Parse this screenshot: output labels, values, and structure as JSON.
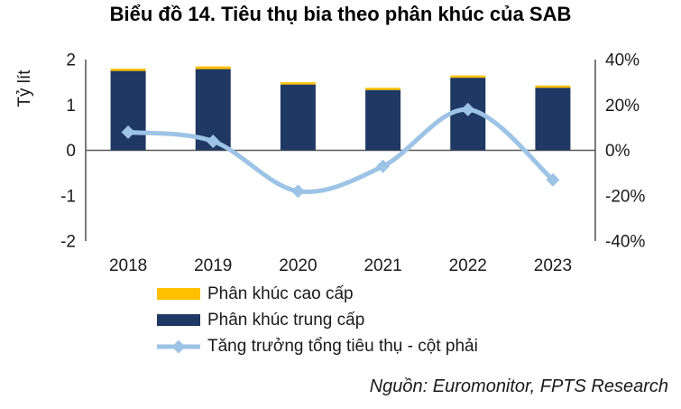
{
  "chart_data": {
    "type": "combo-bar-line",
    "title": "Biểu đồ 14. Tiêu thụ bia theo phân khúc của SAB",
    "categories": [
      "2018",
      "2019",
      "2020",
      "2021",
      "2022",
      "2023"
    ],
    "bar_series": [
      {
        "name": "Phân khúc trung cấp",
        "color": "#1F3864",
        "stack_order": 0,
        "values": [
          1.75,
          1.79,
          1.45,
          1.33,
          1.6,
          1.38
        ]
      },
      {
        "name": "Phân khúc cao cấp",
        "color": "#FFC000",
        "stack_order": 1,
        "values": [
          0.05,
          0.06,
          0.05,
          0.05,
          0.05,
          0.05
        ]
      }
    ],
    "line_series": {
      "name": "Tăng trưởng tổng tiêu thụ - cột phải",
      "color": "#9DC3E6",
      "axis": "right",
      "values_pct": [
        8,
        4,
        -18,
        -7,
        18,
        -13
      ]
    },
    "left_axis": {
      "label": "Tỷ lít",
      "min": -2,
      "max": 2,
      "step": 1,
      "ticks": [
        "2",
        "1",
        "0",
        "-1",
        "-2"
      ]
    },
    "right_axis": {
      "min": -40,
      "max": 40,
      "step": 20,
      "ticks": [
        "40%",
        "20%",
        "0%",
        "-20%",
        "-40%"
      ]
    },
    "axis_color": "#595959",
    "text_color": "#1A1A1A",
    "grid": false,
    "legend_position": "bottom-left",
    "source": "Nguồn: Euromonitor, FPTS Research"
  }
}
